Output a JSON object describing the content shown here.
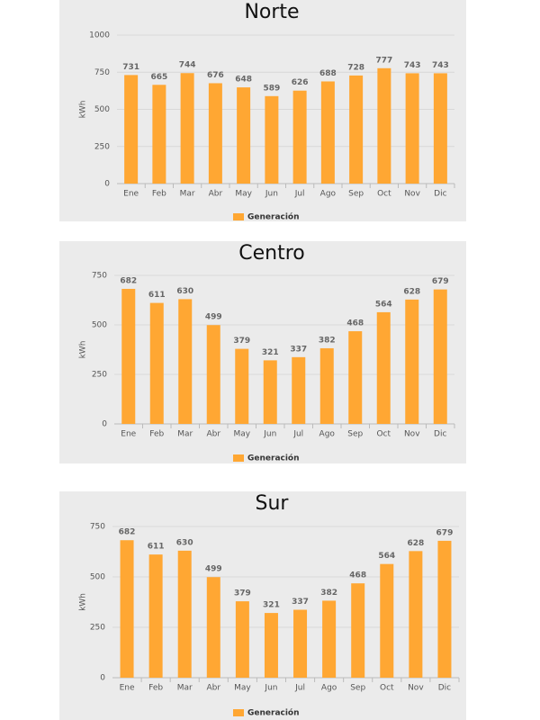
{
  "chart_data": [
    {
      "type": "bar",
      "title": "Norte",
      "y_label": "kWh",
      "categories": [
        "Ene",
        "Feb",
        "Mar",
        "Abr",
        "May",
        "Jun",
        "Jul",
        "Ago",
        "Sep",
        "Oct",
        "Nov",
        "Dic"
      ],
      "series": [
        {
          "name": "Generación",
          "color": "#ffa733",
          "values": [
            731,
            665,
            744,
            676,
            648,
            589,
            626,
            688,
            728,
            777,
            743,
            743
          ]
        }
      ],
      "ylim": [
        0,
        1000
      ],
      "yticks": [
        0,
        250,
        500,
        750,
        1000
      ],
      "grid": true,
      "legend": "bottom"
    },
    {
      "type": "bar",
      "title": "Centro",
      "y_label": "kWh",
      "categories": [
        "Ene",
        "Feb",
        "Mar",
        "Abr",
        "May",
        "Jun",
        "Jul",
        "Ago",
        "Sep",
        "Oct",
        "Nov",
        "Dic"
      ],
      "series": [
        {
          "name": "Generación",
          "color": "#ffa733",
          "values": [
            682,
            611,
            630,
            499,
            379,
            321,
            337,
            382,
            468,
            564,
            628,
            679
          ]
        }
      ],
      "ylim": [
        0,
        750
      ],
      "yticks": [
        0,
        250,
        500,
        750
      ],
      "grid": true,
      "legend": "bottom"
    },
    {
      "type": "bar",
      "title": "Sur",
      "y_label": "kWh",
      "categories": [
        "Ene",
        "Feb",
        "Mar",
        "Abr",
        "May",
        "Jun",
        "Jul",
        "Ago",
        "Sep",
        "Oct",
        "Nov",
        "Dic"
      ],
      "series": [
        {
          "name": "Generación",
          "color": "#ffa733",
          "values": [
            682,
            611,
            630,
            499,
            379,
            321,
            337,
            382,
            468,
            564,
            628,
            679
          ]
        }
      ],
      "ylim": [
        0,
        750
      ],
      "yticks": [
        0,
        250,
        500,
        750
      ],
      "grid": true,
      "legend": "bottom"
    }
  ]
}
